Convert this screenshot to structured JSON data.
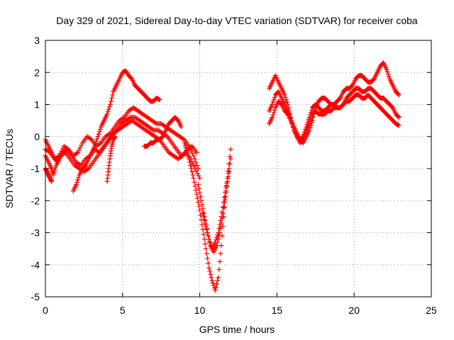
{
  "chart_data": {
    "type": "scatter",
    "title": "Day 329 of 2021, Sidereal Day-to-day VTEC variation (SDTVAR) for receiver coba",
    "xlabel": "GPS time / hours",
    "ylabel": "SDTVAR / TECUs",
    "xlim": [
      0,
      25
    ],
    "ylim": [
      -5,
      3
    ],
    "xticks": [
      0,
      5,
      10,
      15,
      20,
      25
    ],
    "yticks": [
      -5,
      -4,
      -3,
      -2,
      -1,
      0,
      1,
      2,
      3
    ],
    "grid": true,
    "marker": "+",
    "color": "#ff0000",
    "series": [
      {
        "x": [
          0.0,
          0.3,
          0.6,
          0.9,
          1.2,
          1.5,
          1.8,
          2.1,
          2.4,
          2.7,
          3.0,
          3.3,
          3.6,
          3.9,
          4.2,
          4.5,
          4.8,
          5.1,
          5.4,
          5.7,
          6.0,
          6.3,
          6.6,
          6.9,
          7.2,
          7.5,
          7.8,
          8.1,
          8.4,
          8.7,
          9.0,
          9.3,
          9.6,
          9.9
        ],
        "y": [
          -0.4,
          -0.5,
          -0.7,
          -0.6,
          -0.3,
          -0.4,
          -0.6,
          -0.5,
          -0.2,
          0.0,
          -0.1,
          -0.3,
          -0.2,
          0.0,
          0.1,
          0.3,
          0.5,
          0.6,
          0.8,
          0.9,
          0.8,
          0.7,
          0.6,
          0.5,
          0.4,
          0.4,
          0.3,
          0.2,
          0.1,
          0.0,
          -0.1,
          -0.3,
          -0.6,
          -1.0
        ]
      },
      {
        "x": [
          0.0,
          0.2,
          0.4,
          0.6,
          0.8,
          1.0,
          1.3,
          1.6,
          1.9,
          2.2,
          2.5,
          2.8,
          3.1,
          3.4,
          3.7,
          4.0,
          4.3,
          4.6,
          4.9,
          5.2,
          5.5,
          5.8,
          6.1,
          6.4,
          6.7,
          7.0,
          7.3,
          7.6,
          7.9,
          8.2,
          8.5,
          8.8,
          9.1,
          9.4,
          9.7,
          10.0
        ],
        "y": [
          -0.1,
          -0.3,
          -0.5,
          -0.7,
          -0.8,
          -0.6,
          -0.5,
          -0.7,
          -0.9,
          -1.0,
          -1.1,
          -1.0,
          -0.8,
          -0.6,
          -0.4,
          -0.2,
          0.0,
          0.2,
          0.4,
          0.5,
          0.6,
          0.6,
          0.5,
          0.4,
          0.3,
          0.2,
          0.2,
          0.1,
          0.0,
          -0.2,
          -0.4,
          -0.6,
          -0.5,
          -0.7,
          -1.0,
          -1.3
        ]
      },
      {
        "x": [
          0.0,
          0.2,
          0.4,
          0.5,
          0.7,
          0.9,
          1.1,
          1.4,
          1.7,
          2.0,
          2.3,
          2.6,
          2.9,
          3.2,
          3.5,
          3.8,
          4.1,
          4.4,
          4.7,
          5.0,
          5.3,
          5.6,
          5.9,
          6.2,
          6.5,
          6.8,
          7.1,
          7.4,
          7.7,
          8.0,
          8.3,
          8.6,
          8.9,
          9.2,
          9.5,
          9.8
        ],
        "y": [
          -0.6,
          -0.8,
          -1.0,
          -1.2,
          -0.9,
          -0.7,
          -0.5,
          -0.4,
          -0.6,
          -0.8,
          -0.9,
          -0.7,
          -0.6,
          -0.4,
          -0.5,
          -0.3,
          -0.1,
          0.1,
          0.2,
          0.3,
          0.4,
          0.5,
          0.4,
          0.3,
          0.2,
          0.1,
          0.0,
          -0.1,
          -0.3,
          -0.5,
          -0.6,
          -0.7,
          -0.6,
          -0.4,
          -0.3,
          -0.5
        ]
      },
      {
        "x": [
          0.0,
          0.1,
          0.2,
          0.3,
          0.4
        ],
        "y": [
          -1.0,
          -1.1,
          -1.2,
          -1.3,
          -1.4
        ]
      },
      {
        "x": [
          1.8,
          2.0,
          2.2,
          2.4,
          2.6,
          2.8,
          3.0,
          3.2,
          3.4,
          3.6,
          3.8,
          4.0,
          4.2,
          4.4,
          4.6,
          4.8,
          5.0,
          5.2,
          5.4,
          5.6,
          5.8,
          6.0,
          6.2,
          6.4,
          6.6,
          6.8,
          7.0,
          7.2,
          7.4
        ],
        "y": [
          -1.7,
          -1.5,
          -1.2,
          -1.0,
          -0.9,
          -0.7,
          -0.5,
          -0.3,
          0.0,
          0.3,
          0.5,
          0.7,
          1.0,
          1.4,
          1.6,
          1.8,
          2.0,
          2.05,
          1.9,
          1.8,
          1.6,
          1.5,
          1.4,
          1.3,
          1.2,
          1.1,
          1.1,
          1.2,
          1.15
        ]
      },
      {
        "x": [
          4.0,
          4.1,
          4.2,
          4.3,
          4.4,
          4.5
        ],
        "y": [
          -1.4,
          -1.0,
          -0.6,
          -0.3,
          -0.1,
          0.0
        ]
      },
      {
        "x": [
          6.4,
          6.6,
          6.8,
          7.0,
          7.2,
          7.4,
          7.6,
          7.8,
          8.0,
          8.2,
          8.4,
          8.6,
          8.8
        ],
        "y": [
          -0.3,
          -0.3,
          -0.2,
          -0.2,
          -0.1,
          -0.1,
          0.0,
          0.2,
          0.4,
          0.5,
          0.6,
          0.5,
          0.3
        ]
      },
      {
        "x": [
          9.0,
          9.2,
          9.4,
          9.6,
          9.8,
          10.0,
          10.2,
          10.4,
          10.6,
          10.8,
          11.0,
          11.2,
          11.4,
          11.6,
          11.8,
          12.0
        ],
        "y": [
          -0.2,
          -0.5,
          -0.9,
          -1.3,
          -1.8,
          -2.3,
          -2.9,
          -3.5,
          -4.1,
          -4.5,
          -4.8,
          -4.4,
          -3.4,
          -2.2,
          -1.3,
          -0.4
        ]
      },
      {
        "x": [
          9.9,
          10.1,
          10.3,
          10.5,
          10.7,
          10.9,
          11.1,
          11.3,
          11.5,
          11.7,
          11.9
        ],
        "y": [
          -1.5,
          -2.0,
          -2.5,
          -3.0,
          -3.4,
          -3.6,
          -3.4,
          -3.0,
          -2.4,
          -1.7,
          -1.1
        ]
      },
      {
        "x": [
          10.2,
          10.4,
          10.6,
          10.8,
          11.0,
          11.2,
          11.4,
          11.6,
          11.8,
          12.0
        ],
        "y": [
          -2.4,
          -2.8,
          -3.2,
          -3.5,
          -3.3,
          -3.0,
          -2.5,
          -1.9,
          -1.3,
          -0.7
        ]
      },
      {
        "x": [
          14.5,
          14.7,
          14.9,
          15.1,
          15.3,
          15.5,
          15.7,
          15.9,
          16.1,
          16.3,
          16.5,
          16.7,
          16.9,
          17.1,
          17.3,
          17.5,
          17.7,
          17.9,
          18.1,
          18.3,
          18.5,
          18.7,
          18.9,
          19.1,
          19.3,
          19.5,
          19.7,
          19.9,
          20.1,
          20.3,
          20.5,
          20.7,
          20.9,
          21.1,
          21.3,
          21.5,
          21.7,
          21.9,
          22.1,
          22.3,
          22.5,
          22.7,
          22.9
        ],
        "y": [
          1.5,
          1.7,
          1.9,
          1.7,
          1.5,
          1.3,
          1.0,
          0.6,
          0.2,
          0.0,
          -0.1,
          -0.2,
          0.0,
          0.2,
          0.5,
          0.9,
          1.1,
          1.2,
          1.2,
          1.1,
          1.0,
          1.0,
          1.1,
          1.2,
          1.4,
          1.5,
          1.5,
          1.6,
          1.8,
          1.9,
          1.9,
          1.8,
          1.7,
          1.7,
          1.8,
          2.0,
          2.2,
          2.3,
          2.1,
          1.8,
          1.6,
          1.4,
          1.3
        ]
      },
      {
        "x": [
          14.5,
          14.7,
          14.9,
          15.1,
          15.3,
          15.5,
          15.7,
          15.9,
          16.1,
          16.3,
          16.5,
          16.7,
          16.9,
          17.1,
          17.3,
          17.5,
          17.7,
          17.9,
          18.1,
          18.3,
          18.5,
          18.7,
          18.9,
          19.1,
          19.3,
          19.5,
          19.7,
          19.9,
          20.1,
          20.3,
          20.5,
          20.7,
          20.9,
          21.1,
          21.3,
          21.5,
          21.7,
          21.9,
          22.1,
          22.3,
          22.5,
          22.7,
          22.9
        ],
        "y": [
          0.8,
          1.0,
          1.3,
          1.4,
          1.2,
          1.0,
          0.8,
          0.5,
          0.3,
          0.1,
          -0.1,
          0.0,
          0.3,
          0.6,
          0.9,
          1.0,
          0.9,
          0.8,
          0.8,
          0.9,
          1.0,
          1.0,
          0.9,
          0.9,
          1.0,
          1.2,
          1.3,
          1.4,
          1.5,
          1.5,
          1.4,
          1.4,
          1.5,
          1.5,
          1.4,
          1.3,
          1.2,
          1.2,
          1.1,
          1.0,
          0.9,
          0.7,
          0.6
        ]
      },
      {
        "x": [
          14.5,
          14.7,
          14.9,
          15.1,
          15.3,
          15.5,
          15.7,
          15.9,
          16.1,
          16.3,
          16.5,
          16.7,
          16.9,
          17.1,
          17.3,
          17.5,
          17.7,
          17.9,
          18.1,
          18.3,
          18.5,
          18.7,
          18.9,
          19.1,
          19.3,
          19.5,
          19.7,
          19.9,
          20.1,
          20.3,
          20.5,
          20.7,
          20.9,
          21.1,
          21.3,
          21.5,
          21.7,
          21.9,
          22.1,
          22.3,
          22.5,
          22.7,
          22.9
        ],
        "y": [
          0.4,
          0.6,
          0.9,
          1.1,
          1.0,
          0.8,
          0.7,
          0.5,
          0.2,
          0.0,
          -0.2,
          -0.1,
          0.2,
          0.4,
          0.7,
          0.8,
          0.7,
          0.7,
          0.7,
          0.8,
          0.8,
          0.9,
          0.9,
          0.9,
          1.0,
          1.1,
          1.1,
          1.2,
          1.3,
          1.3,
          1.2,
          1.2,
          1.3,
          1.2,
          1.1,
          1.0,
          0.9,
          0.8,
          0.7,
          0.6,
          0.5,
          0.4,
          0.35
        ]
      }
    ]
  }
}
